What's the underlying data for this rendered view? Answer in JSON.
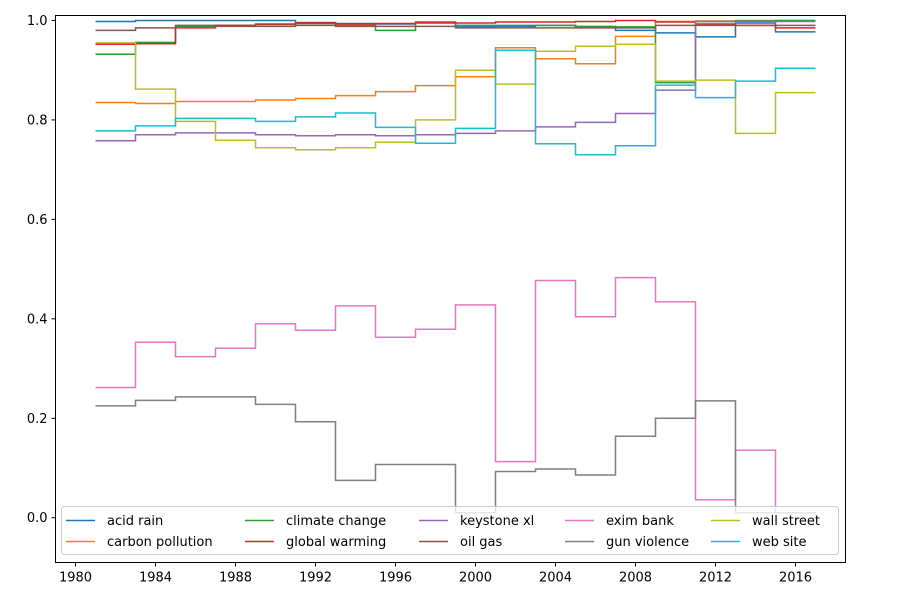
{
  "chart_data": {
    "type": "line",
    "step": "post",
    "xlim": [
      1979,
      2018.5
    ],
    "ylim": [
      -0.09,
      1.01
    ],
    "xticks": [
      1980,
      1984,
      1988,
      1992,
      1996,
      2000,
      2004,
      2008,
      2012,
      2016
    ],
    "yticks": [
      0.0,
      0.2,
      0.4,
      0.6,
      0.8,
      1.0
    ],
    "xtick_labels": [
      "1980",
      "1984",
      "1988",
      "1992",
      "1996",
      "2000",
      "2004",
      "2008",
      "2012",
      "2016"
    ],
    "ytick_labels": [
      "0.0",
      "0.2",
      "0.4",
      "0.6",
      "0.8",
      "1.0"
    ],
    "title": "",
    "xlabel": "",
    "ylabel": "",
    "grid": false,
    "legend_position": "lower-center",
    "legend_columns": 5,
    "x": [
      1981,
      1983,
      1985,
      1987,
      1989,
      1991,
      1993,
      1995,
      1997,
      1999,
      2001,
      2003,
      2005,
      2007,
      2009,
      2011,
      2013,
      2015,
      2017
    ],
    "series": [
      {
        "name": "acid rain",
        "color": "#1f77b4",
        "values": [
          0.998,
          1.0,
          1.0,
          1.0,
          1.0,
          0.996,
          0.994,
          0.993,
          0.995,
          0.987,
          0.988,
          0.99,
          0.987,
          0.98,
          0.975,
          0.967,
          0.995,
          0.977,
          0.977
        ]
      },
      {
        "name": "carbon pollution",
        "color": "#ff7f0e",
        "values": [
          0.835,
          0.833,
          0.837,
          0.837,
          0.84,
          0.843,
          0.849,
          0.857,
          0.869,
          0.887,
          0.945,
          0.923,
          0.913,
          0.968,
          0.998,
          0.999,
          1.0,
          1.0,
          1.0
        ]
      },
      {
        "name": "climate change",
        "color": "#2ca02c",
        "values": [
          0.932,
          0.956,
          0.988,
          0.99,
          0.992,
          0.994,
          0.99,
          0.98,
          0.997,
          0.99,
          0.99,
          0.99,
          0.988,
          0.987,
          0.875,
          0.998,
          0.999,
          1.0,
          1.0
        ]
      },
      {
        "name": "global warming",
        "color": "#d62728",
        "values": [
          0.952,
          0.953,
          0.985,
          0.99,
          0.993,
          0.995,
          0.993,
          0.994,
          0.996,
          0.995,
          0.997,
          0.997,
          0.998,
          1.0,
          0.997,
          0.993,
          0.99,
          0.985,
          0.985
        ]
      },
      {
        "name": "keystone xl",
        "color": "#9467bd",
        "values": [
          0.758,
          0.77,
          0.774,
          0.774,
          0.77,
          0.768,
          0.77,
          0.768,
          0.77,
          0.773,
          0.778,
          0.786,
          0.795,
          0.813,
          0.86,
          0.998,
          0.998,
          0.998,
          0.998
        ]
      },
      {
        "name": "oil gas",
        "color": "#8c564b",
        "values": [
          0.98,
          0.985,
          0.99,
          0.988,
          0.988,
          0.99,
          0.988,
          0.988,
          0.988,
          0.985,
          0.985,
          0.985,
          0.985,
          0.985,
          0.99,
          0.99,
          0.99,
          0.99,
          0.99
        ]
      },
      {
        "name": "exim bank",
        "color": "#e377c2",
        "values": [
          0.262,
          0.353,
          0.324,
          0.341,
          0.39,
          0.377,
          0.426,
          0.363,
          0.379,
          0.428,
          0.113,
          0.477,
          0.404,
          0.483,
          0.434,
          0.036,
          0.136,
          0.01,
          0.01
        ]
      },
      {
        "name": "gun violence",
        "color": "#7f7f7f",
        "values": [
          0.225,
          0.236,
          0.243,
          0.243,
          0.228,
          0.193,
          0.075,
          0.107,
          0.107,
          0.01,
          0.093,
          0.098,
          0.086,
          0.164,
          0.2,
          0.235,
          0.01,
          0.01,
          0.01
        ]
      },
      {
        "name": "wall street",
        "color": "#bcbd22",
        "values": [
          0.955,
          0.862,
          0.797,
          0.759,
          0.744,
          0.74,
          0.744,
          0.755,
          0.8,
          0.9,
          0.872,
          0.938,
          0.948,
          0.952,
          0.878,
          0.88,
          0.773,
          0.855,
          0.855
        ]
      },
      {
        "name": "web site",
        "color": "#17becf",
        "values": [
          0.778,
          0.788,
          0.803,
          0.803,
          0.797,
          0.806,
          0.814,
          0.785,
          0.753,
          0.783,
          0.94,
          0.752,
          0.73,
          0.748,
          0.87,
          0.845,
          0.878,
          0.904,
          0.904
        ]
      }
    ]
  }
}
